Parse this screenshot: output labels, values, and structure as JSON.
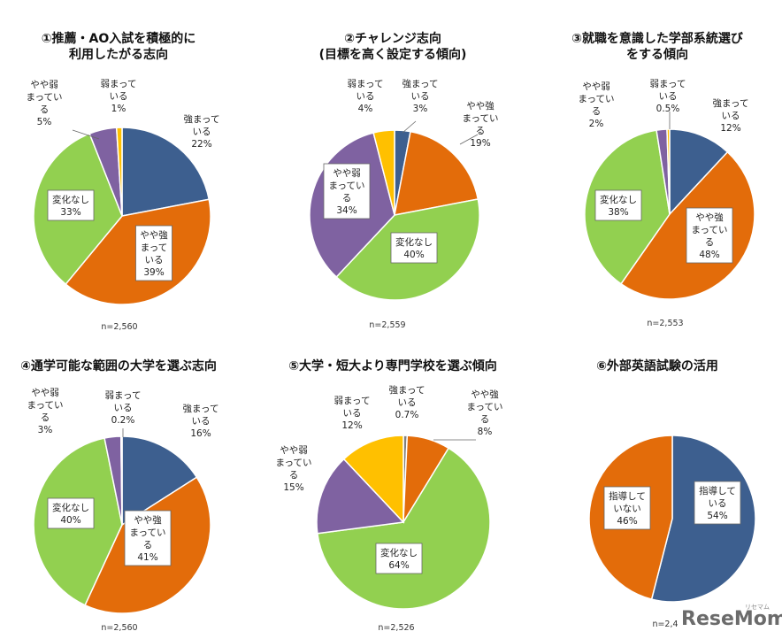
{
  "colors": {
    "blue": "#3d5f8f",
    "orange": "#e36c0a",
    "green": "#92d050",
    "purple": "#7f62a1",
    "yellow": "#ffc000",
    "grey": "#7f7f7f"
  },
  "watermark": {
    "text": "ReseMom",
    "sub": "リセマム"
  },
  "chart_data": [
    {
      "type": "pie",
      "title_lines": [
        "①推薦・AO入試を積極的に",
        "利用したがる志向"
      ],
      "n": "n=2,560",
      "slices": [
        {
          "label_lines": [
            "強まって",
            "いる",
            "22%"
          ],
          "value": 22,
          "color": "blue"
        },
        {
          "label_lines": [
            "やや強",
            "まって",
            "いる",
            "39%"
          ],
          "value": 39,
          "color": "orange"
        },
        {
          "label_lines": [
            "変化なし",
            "33%"
          ],
          "value": 33,
          "color": "green"
        },
        {
          "label_lines": [
            "やや弱",
            "まってい",
            "る",
            "5%"
          ],
          "value": 5,
          "color": "purple"
        },
        {
          "label_lines": [
            "弱まって",
            "いる",
            "1%"
          ],
          "value": 1,
          "color": "yellow"
        }
      ]
    },
    {
      "type": "pie",
      "title_lines": [
        "②チャレンジ志向",
        "(目標を高く設定する傾向)"
      ],
      "n": "n=2,559",
      "slices": [
        {
          "label_lines": [
            "強まって",
            "いる",
            "3%"
          ],
          "value": 3,
          "color": "blue"
        },
        {
          "label_lines": [
            "やや強",
            "まってい",
            "る",
            "19%"
          ],
          "value": 19,
          "color": "orange"
        },
        {
          "label_lines": [
            "変化なし",
            "40%"
          ],
          "value": 40,
          "color": "green"
        },
        {
          "label_lines": [
            "やや弱",
            "まってい",
            "る",
            "34%"
          ],
          "value": 34,
          "color": "purple"
        },
        {
          "label_lines": [
            "弱まって",
            "いる",
            "4%"
          ],
          "value": 4,
          "color": "yellow"
        }
      ]
    },
    {
      "type": "pie",
      "title_lines": [
        "③就職を意識した学部系統選び",
        "をする傾向"
      ],
      "n": "n=2,553",
      "slices": [
        {
          "label_lines": [
            "強まって",
            "いる",
            "12%"
          ],
          "value": 12,
          "color": "blue"
        },
        {
          "label_lines": [
            "やや強",
            "まってい",
            "る",
            "48%"
          ],
          "value": 48,
          "color": "orange"
        },
        {
          "label_lines": [
            "変化なし",
            "38%"
          ],
          "value": 38,
          "color": "green"
        },
        {
          "label_lines": [
            "やや弱",
            "まってい",
            "る",
            "2%"
          ],
          "value": 2,
          "color": "purple"
        },
        {
          "label_lines": [
            "弱まって",
            "いる",
            "0.5%"
          ],
          "value": 0.5,
          "color": "yellow"
        }
      ]
    },
    {
      "type": "pie",
      "title_lines": [
        "④通学可能な範囲の大学を選ぶ志向"
      ],
      "n": "n=2,560",
      "slices": [
        {
          "label_lines": [
            "強まって",
            "いる",
            "16%"
          ],
          "value": 16,
          "color": "blue"
        },
        {
          "label_lines": [
            "やや強",
            "まってい",
            "る",
            "41%"
          ],
          "value": 41,
          "color": "orange"
        },
        {
          "label_lines": [
            "変化なし",
            "40%"
          ],
          "value": 40,
          "color": "green"
        },
        {
          "label_lines": [
            "やや弱",
            "まってい",
            "る",
            "3%"
          ],
          "value": 3,
          "color": "purple"
        },
        {
          "label_lines": [
            "弱まって",
            "いる",
            "0.2%"
          ],
          "value": 0.2,
          "color": "yellow"
        }
      ]
    },
    {
      "type": "pie",
      "title_lines": [
        "⑤大学・短大より専門学校を選ぶ傾向"
      ],
      "n": "n=2,526",
      "slices": [
        {
          "label_lines": [
            "強まって",
            "いる",
            "0.7%"
          ],
          "value": 0.7,
          "color": "grey"
        },
        {
          "label_lines": [
            "やや強",
            "まってい",
            "る",
            "8%"
          ],
          "value": 8,
          "color": "orange"
        },
        {
          "label_lines": [
            "変化なし",
            "64%"
          ],
          "value": 64,
          "color": "green"
        },
        {
          "label_lines": [
            "やや弱",
            "まってい",
            "る",
            "15%"
          ],
          "value": 15,
          "color": "purple"
        },
        {
          "label_lines": [
            "弱まって",
            "いる",
            "12%"
          ],
          "value": 12,
          "color": "yellow"
        }
      ]
    },
    {
      "type": "pie",
      "title_lines": [
        "⑥外部英語試験の活用"
      ],
      "n": "n=2,4",
      "slices": [
        {
          "label_lines": [
            "指導して",
            "いる",
            "54%"
          ],
          "value": 54,
          "color": "blue"
        },
        {
          "label_lines": [
            "指導して",
            "いない",
            "46%"
          ],
          "value": 46,
          "color": "orange"
        }
      ]
    }
  ]
}
